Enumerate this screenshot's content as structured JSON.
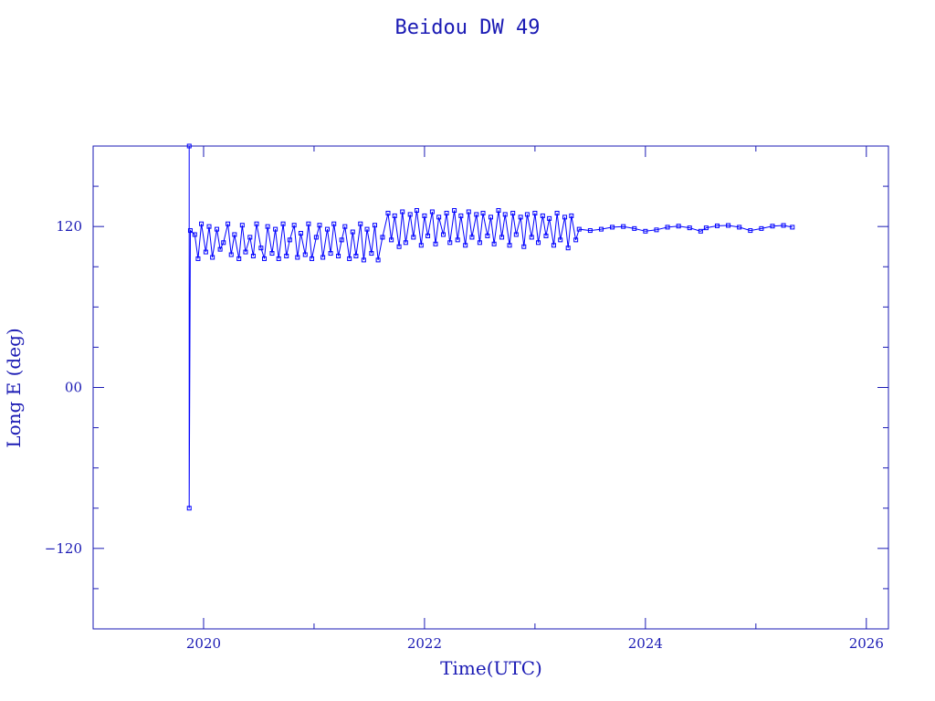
{
  "chart_data": {
    "type": "line",
    "title": "Beidou DW 49",
    "xlabel": "Time(UTC)",
    "ylabel": "Long E (deg)",
    "xlim": [
      2019,
      2026.2
    ],
    "ylim": [
      -180,
      180
    ],
    "x_ticks": [
      "2020",
      "2022",
      "2024",
      "2026"
    ],
    "y_ticks": [
      "−120",
      "00",
      "120"
    ],
    "grid": false,
    "colors": {
      "axis": "#1a1ab4",
      "series": "#0000ff"
    },
    "series": [
      {
        "marker": "square",
        "points": [
          [
            2019.87,
            180
          ],
          [
            2019.87,
            -90
          ],
          [
            2019.88,
            117
          ],
          [
            2019.92,
            114
          ],
          [
            2019.95,
            96
          ],
          [
            2019.98,
            122
          ],
          [
            2020.02,
            101
          ],
          [
            2020.05,
            120
          ],
          [
            2020.08,
            97
          ],
          [
            2020.12,
            118
          ],
          [
            2020.15,
            103
          ],
          [
            2020.18,
            108
          ],
          [
            2020.22,
            122
          ],
          [
            2020.25,
            99
          ],
          [
            2020.28,
            114
          ],
          [
            2020.32,
            96
          ],
          [
            2020.35,
            121
          ],
          [
            2020.38,
            101
          ],
          [
            2020.42,
            112
          ],
          [
            2020.45,
            98
          ],
          [
            2020.48,
            122
          ],
          [
            2020.52,
            104
          ],
          [
            2020.55,
            96
          ],
          [
            2020.58,
            120
          ],
          [
            2020.62,
            100
          ],
          [
            2020.65,
            118
          ],
          [
            2020.68,
            96
          ],
          [
            2020.72,
            122
          ],
          [
            2020.75,
            98
          ],
          [
            2020.78,
            110
          ],
          [
            2020.82,
            121
          ],
          [
            2020.85,
            97
          ],
          [
            2020.88,
            115
          ],
          [
            2020.92,
            99
          ],
          [
            2020.95,
            122
          ],
          [
            2020.98,
            96
          ],
          [
            2021.02,
            112
          ],
          [
            2021.05,
            121
          ],
          [
            2021.08,
            97
          ],
          [
            2021.12,
            118
          ],
          [
            2021.15,
            100
          ],
          [
            2021.18,
            122
          ],
          [
            2021.22,
            98
          ],
          [
            2021.25,
            110
          ],
          [
            2021.28,
            120
          ],
          [
            2021.32,
            96
          ],
          [
            2021.35,
            116
          ],
          [
            2021.38,
            98
          ],
          [
            2021.42,
            122
          ],
          [
            2021.45,
            95
          ],
          [
            2021.48,
            118
          ],
          [
            2021.52,
            100
          ],
          [
            2021.55,
            121
          ],
          [
            2021.58,
            95
          ],
          [
            2021.62,
            112
          ],
          [
            2021.67,
            130
          ],
          [
            2021.7,
            110
          ],
          [
            2021.73,
            128
          ],
          [
            2021.77,
            105
          ],
          [
            2021.8,
            131
          ],
          [
            2021.83,
            108
          ],
          [
            2021.87,
            129
          ],
          [
            2021.9,
            112
          ],
          [
            2021.93,
            132
          ],
          [
            2021.97,
            106
          ],
          [
            2022.0,
            128
          ],
          [
            2022.03,
            113
          ],
          [
            2022.07,
            131
          ],
          [
            2022.1,
            107
          ],
          [
            2022.13,
            127
          ],
          [
            2022.17,
            114
          ],
          [
            2022.2,
            130
          ],
          [
            2022.23,
            108
          ],
          [
            2022.27,
            132
          ],
          [
            2022.3,
            110
          ],
          [
            2022.33,
            128
          ],
          [
            2022.37,
            106
          ],
          [
            2022.4,
            131
          ],
          [
            2022.43,
            112
          ],
          [
            2022.47,
            129
          ],
          [
            2022.5,
            108
          ],
          [
            2022.53,
            130
          ],
          [
            2022.57,
            113
          ],
          [
            2022.6,
            127
          ],
          [
            2022.63,
            107
          ],
          [
            2022.67,
            132
          ],
          [
            2022.7,
            112
          ],
          [
            2022.73,
            129
          ],
          [
            2022.77,
            106
          ],
          [
            2022.8,
            130
          ],
          [
            2022.83,
            114
          ],
          [
            2022.87,
            127
          ],
          [
            2022.9,
            105
          ],
          [
            2022.93,
            129
          ],
          [
            2022.97,
            112
          ],
          [
            2023.0,
            130
          ],
          [
            2023.03,
            108
          ],
          [
            2023.07,
            128
          ],
          [
            2023.1,
            113
          ],
          [
            2023.13,
            126
          ],
          [
            2023.17,
            106
          ],
          [
            2023.2,
            130
          ],
          [
            2023.23,
            110
          ],
          [
            2023.27,
            127
          ],
          [
            2023.3,
            104
          ],
          [
            2023.33,
            128
          ],
          [
            2023.37,
            110
          ],
          [
            2023.4,
            118
          ],
          [
            2023.5,
            117
          ],
          [
            2023.6,
            118
          ],
          [
            2023.7,
            119.5
          ],
          [
            2023.8,
            120
          ],
          [
            2023.9,
            118.5
          ],
          [
            2024.0,
            116.5
          ],
          [
            2024.1,
            117.5
          ],
          [
            2024.2,
            119.5
          ],
          [
            2024.3,
            120.3
          ],
          [
            2024.4,
            119
          ],
          [
            2024.5,
            116.5
          ],
          [
            2024.55,
            119
          ],
          [
            2024.65,
            120.5
          ],
          [
            2024.75,
            120.8
          ],
          [
            2024.85,
            119.5
          ],
          [
            2024.95,
            117
          ],
          [
            2025.05,
            118.5
          ],
          [
            2025.15,
            120.3
          ],
          [
            2025.25,
            120.8
          ],
          [
            2025.33,
            119.5
          ]
        ]
      }
    ]
  }
}
